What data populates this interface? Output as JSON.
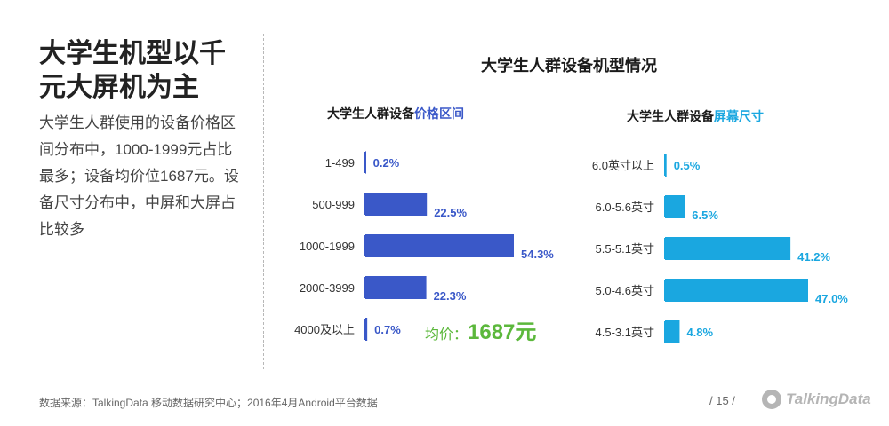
{
  "slide": {
    "title_line1": "大学生机型以千",
    "title_line2": "元大屏机为主",
    "description": "大学生人群使用的设备价格区间分布中，1000-1999元占比最多；设备均价位1687元。设备尺寸分布中，中屏和大屏占比较多"
  },
  "chart_data": [
    {
      "type": "bar",
      "orientation": "horizontal",
      "title": "大学生人群设备价格区间",
      "title_prefix": "大学生人群设备",
      "title_highlight": "价格区间",
      "categories": [
        "1-499",
        "500-999",
        "1000-1999",
        "2000-3999",
        "4000及以上"
      ],
      "values": [
        0.2,
        22.5,
        54.3,
        22.3,
        0.7
      ],
      "value_labels": [
        "0.2%",
        "22.5%",
        "54.3%",
        "22.3%",
        "0.7%"
      ],
      "xlim": [
        0,
        54.3
      ],
      "color": "#3a58c8"
    },
    {
      "type": "bar",
      "orientation": "horizontal",
      "title": "大学生人群设备屏幕尺寸",
      "title_prefix": "大学生人群设备",
      "title_highlight": "屏幕尺寸",
      "categories": [
        "6.0英寸以上",
        "6.0-5.6英寸",
        "5.5-5.1英寸",
        "5.0-4.6英寸",
        "4.5-3.1英寸"
      ],
      "values": [
        0.5,
        6.5,
        41.2,
        47.0,
        4.8
      ],
      "value_labels": [
        "0.5%",
        "6.5%",
        "41.2%",
        "47.0%",
        "4.8%"
      ],
      "xlim": [
        0,
        47.0
      ],
      "color": "#1aa7e0"
    }
  ],
  "main_title": "大学生人群设备机型情况",
  "average_price": {
    "label": "均价：",
    "value": "1687元",
    "color": "#5cb83c"
  },
  "footer": {
    "source": "数据来源：TalkingData 移动数据研究中心；2016年4月Android平台数据",
    "page": "/ 15 /",
    "logo_text": "TalkingData"
  }
}
